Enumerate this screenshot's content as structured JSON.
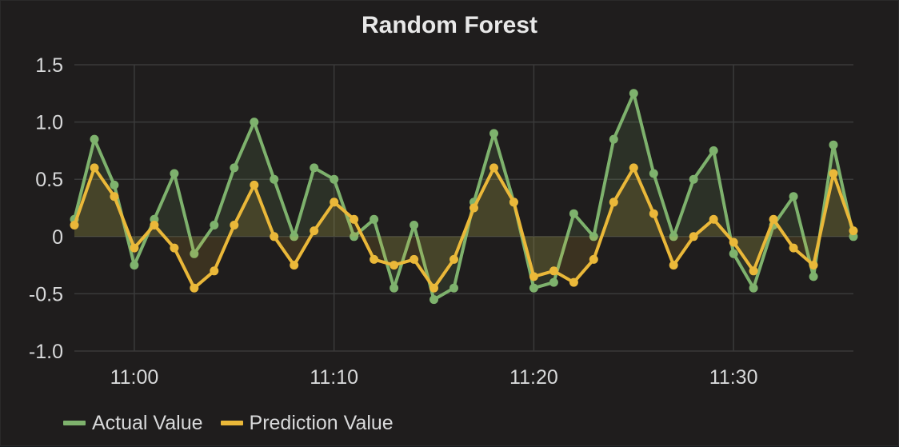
{
  "panel": {
    "title": "Random Forest"
  },
  "legend": {
    "items": [
      {
        "label": "Actual Value",
        "color": "#7eb26d"
      },
      {
        "label": "Prediction Value",
        "color": "#eab839"
      }
    ]
  },
  "chart_data": {
    "type": "line",
    "title": "Random Forest",
    "xlabel": "",
    "ylabel": "",
    "x_start": "10:57",
    "x_end": "11:36",
    "x_ticks": [
      "11:00",
      "11:10",
      "11:20",
      "11:30"
    ],
    "y_ticks": [
      "1.5",
      "1.0",
      "0.5",
      "0",
      "-0.5",
      "-1.0"
    ],
    "ylim": [
      -1.0,
      1.5
    ],
    "grid": true,
    "legend_position": "bottom-left",
    "series": [
      {
        "name": "Actual Value",
        "color": "#7eb26d",
        "fill": true,
        "x": [
          "10:57",
          "10:58",
          "10:59",
          "11:00",
          "11:01",
          "11:02",
          "11:03",
          "11:04",
          "11:05",
          "11:06",
          "11:07",
          "11:08",
          "11:09",
          "11:10",
          "11:11",
          "11:12",
          "11:13",
          "11:14",
          "11:15",
          "11:16",
          "11:17",
          "11:18",
          "11:19",
          "11:20",
          "11:21",
          "11:22",
          "11:23",
          "11:24",
          "11:25",
          "11:26",
          "11:27",
          "11:28",
          "11:29",
          "11:30",
          "11:31",
          "11:32",
          "11:33",
          "11:34",
          "11:35",
          "11:36"
        ],
        "values": [
          0.15,
          0.85,
          0.45,
          -0.25,
          0.15,
          0.55,
          -0.15,
          0.1,
          0.6,
          1.0,
          0.5,
          0.0,
          0.6,
          0.5,
          0.0,
          0.15,
          -0.45,
          0.1,
          -0.55,
          -0.45,
          0.3,
          0.9,
          0.3,
          -0.45,
          -0.4,
          0.2,
          0.0,
          0.85,
          1.25,
          0.55,
          0.0,
          0.5,
          0.75,
          -0.15,
          -0.45,
          0.1,
          0.35,
          -0.35,
          0.8,
          0.0
        ]
      },
      {
        "name": "Prediction Value",
        "color": "#eab839",
        "fill": true,
        "x": [
          "10:57",
          "10:58",
          "10:59",
          "11:00",
          "11:01",
          "11:02",
          "11:03",
          "11:04",
          "11:05",
          "11:06",
          "11:07",
          "11:08",
          "11:09",
          "11:10",
          "11:11",
          "11:12",
          "11:13",
          "11:14",
          "11:15",
          "11:16",
          "11:17",
          "11:18",
          "11:19",
          "11:20",
          "11:21",
          "11:22",
          "11:23",
          "11:24",
          "11:25",
          "11:26",
          "11:27",
          "11:28",
          "11:29",
          "11:30",
          "11:31",
          "11:32",
          "11:33",
          "11:34",
          "11:35",
          "11:36"
        ],
        "values": [
          0.1,
          0.6,
          0.35,
          -0.1,
          0.1,
          -0.1,
          -0.45,
          -0.3,
          0.1,
          0.45,
          0.0,
          -0.25,
          0.05,
          0.3,
          0.15,
          -0.2,
          -0.25,
          -0.2,
          -0.45,
          -0.2,
          0.25,
          0.6,
          0.3,
          -0.35,
          -0.3,
          -0.4,
          -0.2,
          0.3,
          0.6,
          0.2,
          -0.25,
          0.0,
          0.15,
          -0.05,
          -0.3,
          0.15,
          -0.1,
          -0.25,
          0.55,
          0.05
        ]
      }
    ]
  }
}
